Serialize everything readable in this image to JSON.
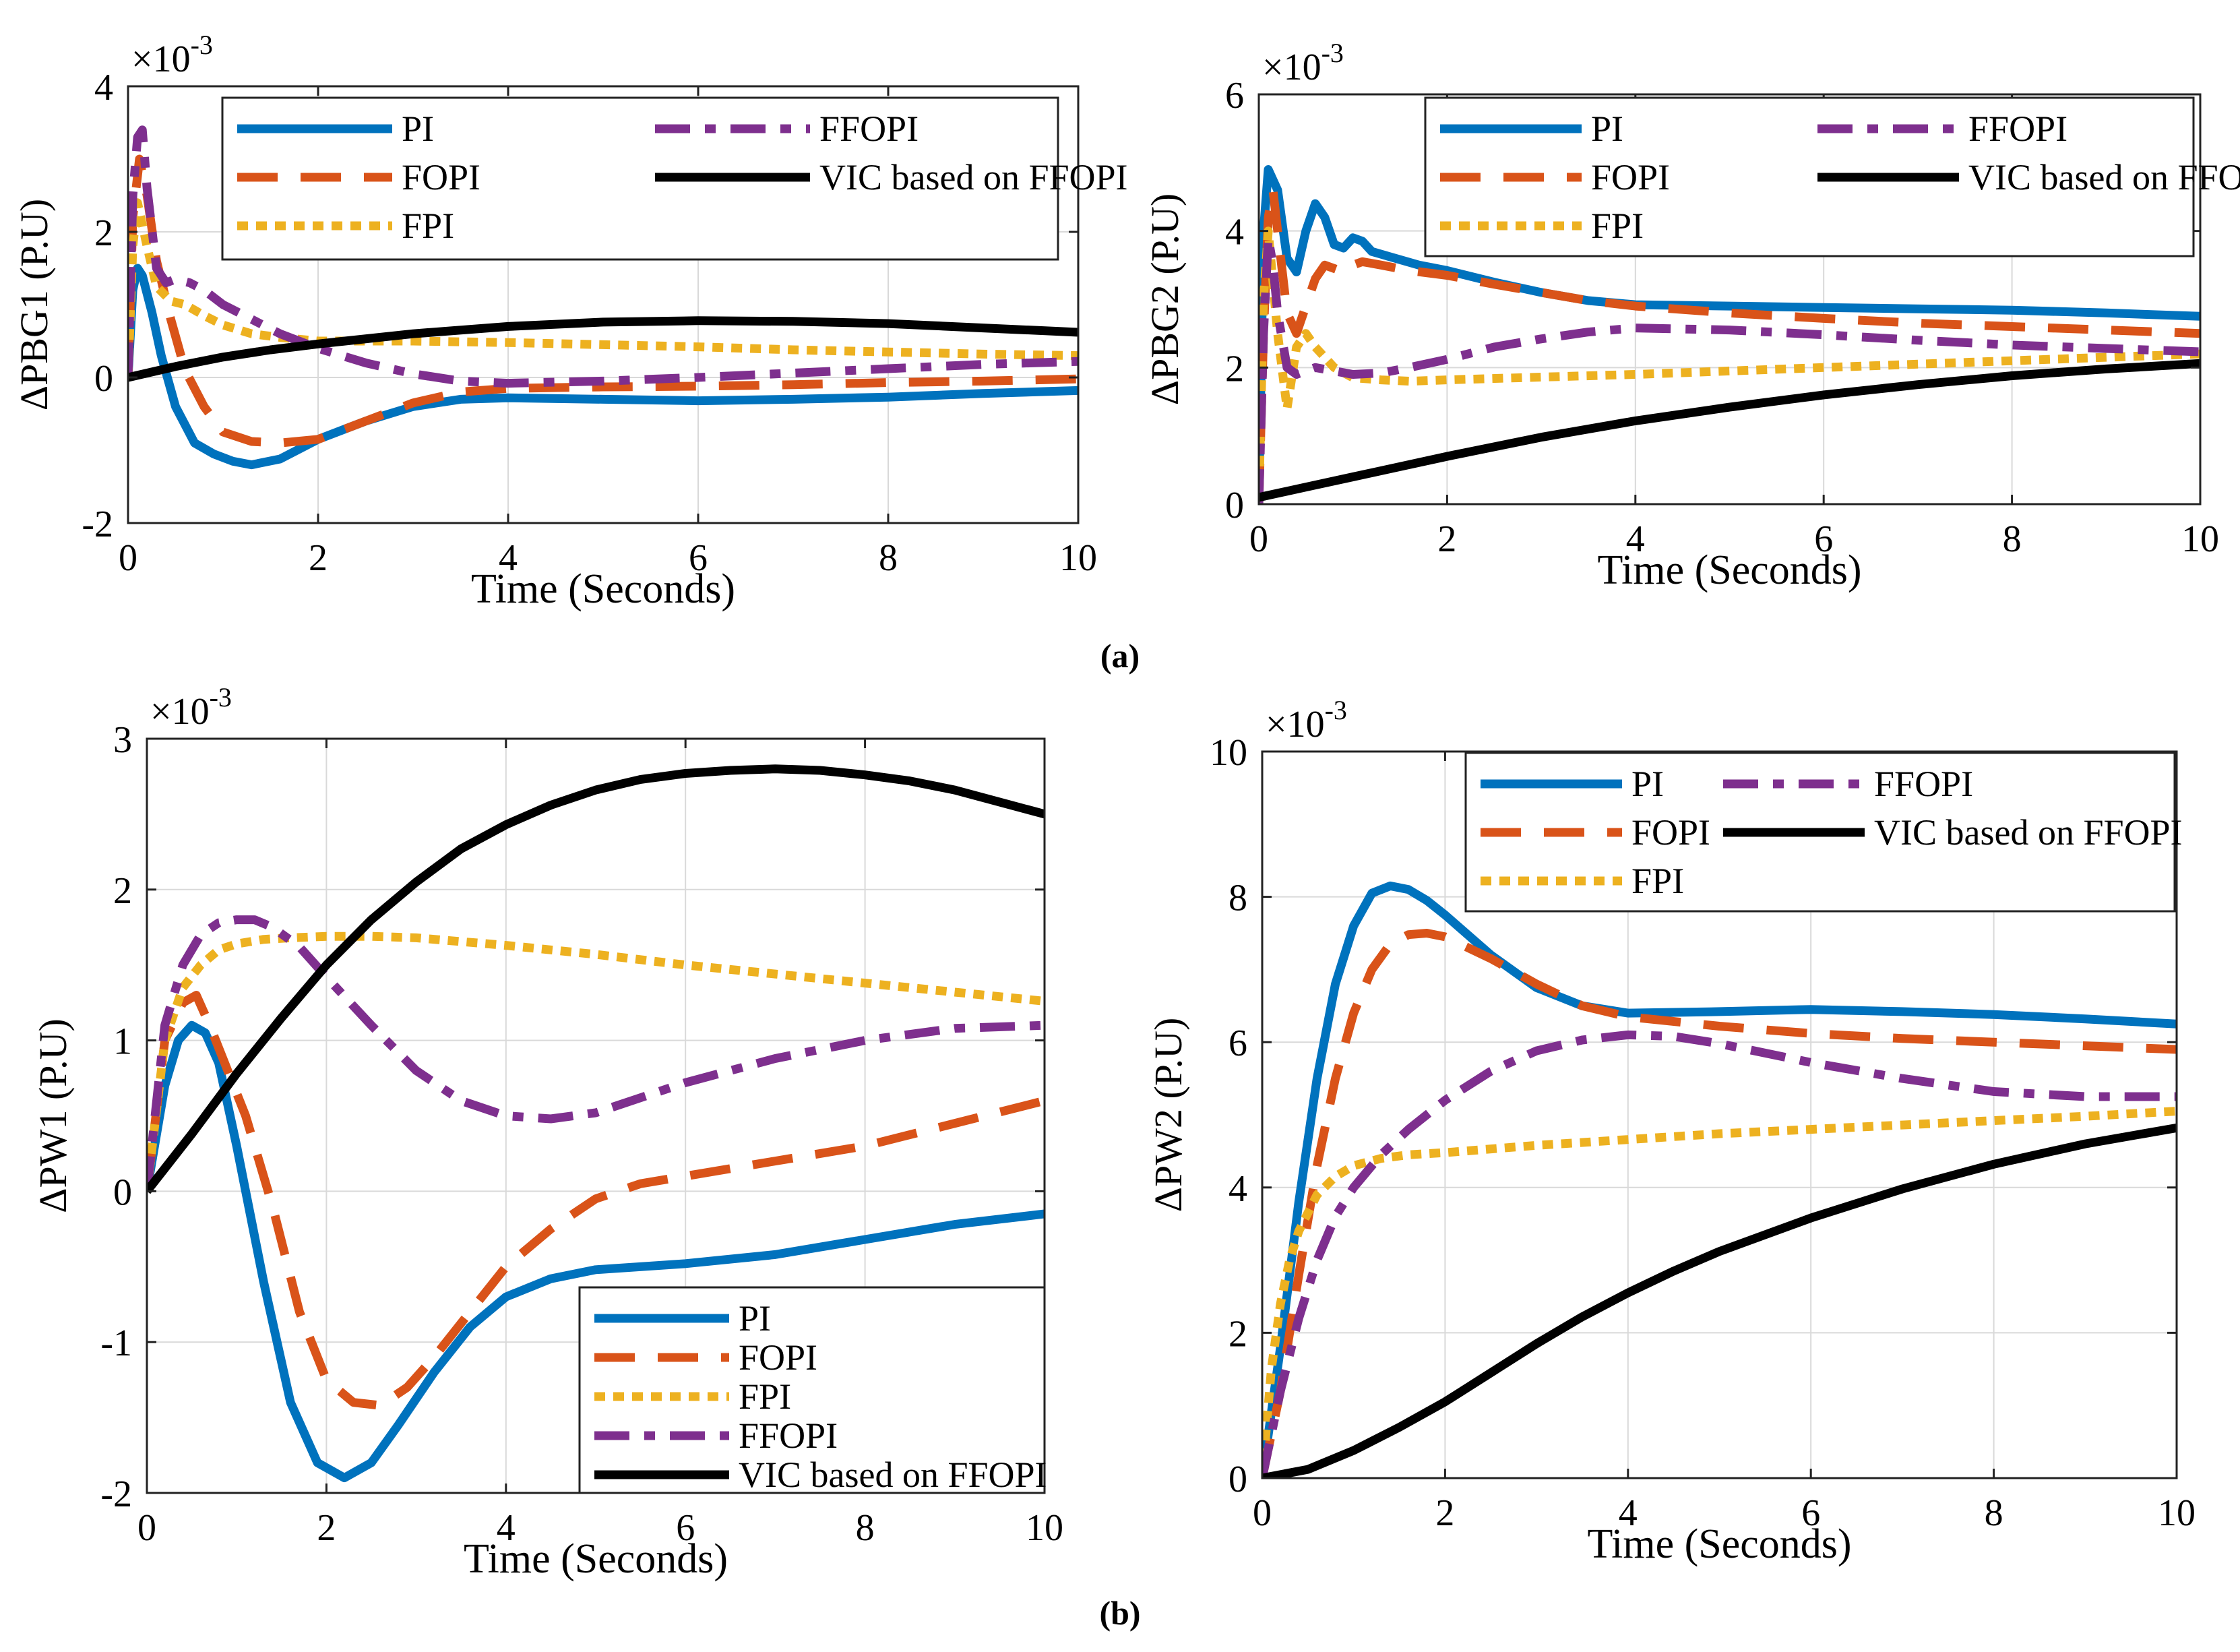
{
  "colors": {
    "PI": "#0072BD",
    "FOPI": "#D95319",
    "FPI": "#EDB120",
    "FFOPI": "#7E2F8E",
    "VIC based on FFOPI": "#000000"
  },
  "captions": {
    "a": "(a)",
    "b": "(b)"
  },
  "chart_data": [
    {
      "id": "pbg1",
      "type": "line",
      "title": "",
      "xlabel": "Time (Seconds)",
      "ylabel": "ΔPBG1 (P.U)",
      "multiplier": {
        "base": "×10",
        "exp": "-3"
      },
      "xlim": [
        0,
        10
      ],
      "ylim": [
        -2,
        4
      ],
      "xticks": [
        0,
        2,
        4,
        6,
        8,
        10
      ],
      "yticks": [
        -2,
        0,
        2,
        4
      ],
      "grid": true,
      "legend_position": "top-right",
      "legend_layout": "two-column",
      "series": [
        {
          "name": "PI",
          "x": [
            0,
            0.05,
            0.1,
            0.15,
            0.25,
            0.35,
            0.5,
            0.7,
            0.9,
            1.1,
            1.3,
            1.6,
            2.0,
            2.5,
            3.0,
            3.5,
            4.0,
            5.0,
            6.0,
            7.0,
            8.0,
            9.0,
            10.0
          ],
          "y": [
            0,
            1.2,
            1.5,
            1.4,
            0.9,
            0.3,
            -0.4,
            -0.9,
            -1.05,
            -1.15,
            -1.2,
            -1.12,
            -0.85,
            -0.6,
            -0.4,
            -0.3,
            -0.28,
            -0.3,
            -0.32,
            -0.3,
            -0.27,
            -0.22,
            -0.18
          ]
        },
        {
          "name": "FOPI",
          "x": [
            0,
            0.05,
            0.12,
            0.2,
            0.3,
            0.45,
            0.6,
            0.8,
            1.0,
            1.3,
            1.6,
            2.0,
            2.5,
            3.0,
            3.5,
            4.0,
            5.0,
            6.0,
            7.0,
            8.0,
            9.0,
            10.0
          ],
          "y": [
            0,
            2.2,
            3.0,
            2.5,
            1.6,
            0.8,
            0.1,
            -0.4,
            -0.75,
            -0.88,
            -0.9,
            -0.85,
            -0.6,
            -0.35,
            -0.2,
            -0.15,
            -0.13,
            -0.12,
            -0.1,
            -0.07,
            -0.05,
            -0.02
          ]
        },
        {
          "name": "FPI",
          "x": [
            0,
            0.05,
            0.1,
            0.2,
            0.3,
            0.45,
            0.6,
            0.8,
            1.0,
            1.3,
            1.6,
            2.0,
            2.5,
            3.0,
            4.0,
            5.0,
            6.0,
            7.0,
            8.0,
            9.0,
            10.0
          ],
          "y": [
            0,
            1.8,
            2.4,
            1.8,
            1.25,
            1.05,
            1.0,
            0.85,
            0.72,
            0.6,
            0.55,
            0.5,
            0.5,
            0.5,
            0.48,
            0.45,
            0.42,
            0.38,
            0.35,
            0.32,
            0.3
          ]
        },
        {
          "name": "FFOPI",
          "x": [
            0,
            0.05,
            0.1,
            0.15,
            0.2,
            0.3,
            0.4,
            0.5,
            0.65,
            0.8,
            1.0,
            1.3,
            1.6,
            2.0,
            2.5,
            3.0,
            3.5,
            4.0,
            5.0,
            6.0,
            7.0,
            8.0,
            9.0,
            10.0
          ],
          "y": [
            0,
            2.5,
            3.3,
            3.4,
            2.6,
            1.5,
            1.3,
            1.35,
            1.3,
            1.2,
            1.0,
            0.8,
            0.6,
            0.4,
            0.2,
            0.05,
            -0.05,
            -0.08,
            -0.05,
            0.0,
            0.06,
            0.12,
            0.18,
            0.22
          ]
        },
        {
          "name": "VIC based on FFOPI",
          "x": [
            0,
            0.5,
            1.0,
            1.5,
            2.0,
            3.0,
            4.0,
            5.0,
            6.0,
            7.0,
            8.0,
            9.0,
            10.0
          ],
          "y": [
            0,
            0.15,
            0.28,
            0.38,
            0.46,
            0.6,
            0.7,
            0.76,
            0.78,
            0.77,
            0.74,
            0.68,
            0.62
          ]
        }
      ]
    },
    {
      "id": "pbg2",
      "type": "line",
      "title": "",
      "xlabel": "Time (Seconds)",
      "ylabel": "ΔPBG2 (P.U)",
      "multiplier": {
        "base": "×10",
        "exp": "-3"
      },
      "xlim": [
        0,
        10
      ],
      "ylim": [
        0,
        6
      ],
      "xticks": [
        0,
        2,
        4,
        6,
        8,
        10
      ],
      "yticks": [
        0,
        2,
        4,
        6
      ],
      "grid": true,
      "legend_position": "top-right",
      "legend_layout": "two-column",
      "series": [
        {
          "name": "PI",
          "x": [
            0,
            0.05,
            0.1,
            0.2,
            0.3,
            0.4,
            0.5,
            0.6,
            0.7,
            0.8,
            0.9,
            1.0,
            1.1,
            1.2,
            1.4,
            1.7,
            2.0,
            2.5,
            3.0,
            3.5,
            4.0,
            5.0,
            6.0,
            7.0,
            8.0,
            9.0,
            10.0
          ],
          "y": [
            0,
            4.0,
            4.9,
            4.6,
            3.6,
            3.4,
            4.0,
            4.4,
            4.2,
            3.8,
            3.75,
            3.9,
            3.85,
            3.7,
            3.62,
            3.5,
            3.42,
            3.25,
            3.1,
            2.98,
            2.92,
            2.9,
            2.88,
            2.86,
            2.84,
            2.8,
            2.75
          ]
        },
        {
          "name": "FOPI",
          "x": [
            0,
            0.05,
            0.1,
            0.15,
            0.2,
            0.3,
            0.4,
            0.5,
            0.6,
            0.7,
            0.8,
            0.9,
            1.0,
            1.1,
            1.3,
            1.6,
            2.0,
            2.5,
            3.0,
            3.5,
            4.0,
            5.0,
            6.0,
            7.0,
            8.0,
            9.0,
            10.0
          ],
          "y": [
            0,
            2.5,
            4.2,
            4.6,
            4.0,
            2.8,
            2.5,
            2.9,
            3.3,
            3.5,
            3.45,
            3.4,
            3.5,
            3.55,
            3.5,
            3.42,
            3.35,
            3.22,
            3.1,
            2.98,
            2.9,
            2.8,
            2.72,
            2.65,
            2.6,
            2.55,
            2.5
          ]
        },
        {
          "name": "FPI",
          "x": [
            0,
            0.05,
            0.1,
            0.2,
            0.3,
            0.4,
            0.5,
            0.6,
            0.8,
            1.0,
            1.3,
            1.6,
            2.0,
            3.0,
            4.0,
            5.0,
            6.0,
            7.0,
            8.0,
            9.0,
            10.0
          ],
          "y": [
            0,
            3.0,
            4.0,
            2.5,
            1.4,
            2.3,
            2.5,
            2.3,
            2.0,
            1.85,
            1.82,
            1.8,
            1.82,
            1.86,
            1.9,
            1.95,
            2.0,
            2.05,
            2.1,
            2.15,
            2.2
          ]
        },
        {
          "name": "FFOPI",
          "x": [
            0,
            0.05,
            0.1,
            0.15,
            0.2,
            0.3,
            0.4,
            0.5,
            0.6,
            0.8,
            1.0,
            1.3,
            1.6,
            2.0,
            2.5,
            3.0,
            3.5,
            4.0,
            5.0,
            6.0,
            7.0,
            8.0,
            9.0,
            10.0
          ],
          "y": [
            0,
            2.5,
            3.9,
            3.5,
            2.8,
            2.0,
            1.9,
            1.95,
            2.0,
            1.95,
            1.9,
            1.92,
            2.0,
            2.12,
            2.3,
            2.42,
            2.52,
            2.58,
            2.55,
            2.48,
            2.4,
            2.33,
            2.28,
            2.23
          ]
        },
        {
          "name": "VIC based on FFOPI",
          "x": [
            0,
            0.5,
            1.0,
            1.5,
            2.0,
            3.0,
            4.0,
            5.0,
            6.0,
            7.0,
            8.0,
            9.0,
            10.0
          ],
          "y": [
            0.1,
            0.25,
            0.4,
            0.55,
            0.7,
            0.98,
            1.22,
            1.42,
            1.6,
            1.75,
            1.88,
            1.98,
            2.06
          ]
        }
      ]
    },
    {
      "id": "pw1",
      "type": "line",
      "title": "",
      "xlabel": "Time (Seconds)",
      "ylabel": "ΔPW1 (P.U)",
      "multiplier": {
        "base": "×10",
        "exp": "-3"
      },
      "xlim": [
        0,
        10
      ],
      "ylim": [
        -2,
        3
      ],
      "xticks": [
        0,
        2,
        4,
        6,
        8,
        10
      ],
      "yticks": [
        -2,
        -1,
        0,
        1,
        2,
        3
      ],
      "grid": true,
      "legend_position": "bottom-right",
      "legend_layout": "one-column",
      "series": [
        {
          "name": "PI",
          "x": [
            0,
            0.2,
            0.35,
            0.5,
            0.65,
            0.8,
            1.0,
            1.3,
            1.6,
            1.9,
            2.2,
            2.5,
            2.8,
            3.2,
            3.6,
            4.0,
            4.5,
            5.0,
            6.0,
            7.0,
            8.0,
            9.0,
            10.0
          ],
          "y": [
            0,
            0.7,
            1.0,
            1.1,
            1.05,
            0.85,
            0.3,
            -0.6,
            -1.4,
            -1.8,
            -1.9,
            -1.8,
            -1.55,
            -1.2,
            -0.9,
            -0.7,
            -0.58,
            -0.52,
            -0.48,
            -0.42,
            -0.32,
            -0.22,
            -0.15
          ]
        },
        {
          "name": "FOPI",
          "x": [
            0,
            0.2,
            0.4,
            0.55,
            0.7,
            0.9,
            1.1,
            1.4,
            1.7,
            2.0,
            2.3,
            2.6,
            2.9,
            3.2,
            3.6,
            4.0,
            4.5,
            5.0,
            5.5,
            6.0,
            7.0,
            8.0,
            9.0,
            10.0
          ],
          "y": [
            0,
            1.0,
            1.25,
            1.3,
            1.1,
            0.8,
            0.5,
            -0.1,
            -0.8,
            -1.25,
            -1.4,
            -1.42,
            -1.3,
            -1.1,
            -0.8,
            -0.5,
            -0.25,
            -0.05,
            0.05,
            0.1,
            0.2,
            0.3,
            0.45,
            0.6
          ]
        },
        {
          "name": "FPI",
          "x": [
            0,
            0.2,
            0.4,
            0.6,
            0.8,
            1.0,
            1.3,
            1.6,
            2.0,
            2.5,
            3.0,
            4.0,
            5.0,
            6.0,
            7.0,
            8.0,
            9.0,
            10.0
          ],
          "y": [
            0,
            1.0,
            1.35,
            1.5,
            1.6,
            1.64,
            1.67,
            1.68,
            1.69,
            1.69,
            1.68,
            1.63,
            1.57,
            1.5,
            1.44,
            1.38,
            1.32,
            1.26
          ]
        },
        {
          "name": "FFOPI",
          "x": [
            0,
            0.2,
            0.4,
            0.6,
            0.8,
            1.0,
            1.2,
            1.4,
            1.7,
            2.0,
            2.5,
            3.0,
            3.5,
            4.0,
            4.5,
            5.0,
            5.5,
            6.0,
            7.0,
            8.0,
            9.0,
            10.0
          ],
          "y": [
            0,
            1.1,
            1.5,
            1.7,
            1.78,
            1.8,
            1.8,
            1.75,
            1.62,
            1.42,
            1.1,
            0.8,
            0.6,
            0.5,
            0.48,
            0.52,
            0.62,
            0.72,
            0.88,
            1.0,
            1.08,
            1.1
          ]
        },
        {
          "name": "VIC based on FFOPI",
          "x": [
            0,
            0.5,
            1.0,
            1.5,
            2.0,
            2.5,
            3.0,
            3.5,
            4.0,
            4.5,
            5.0,
            5.5,
            6.0,
            6.5,
            7.0,
            7.5,
            8.0,
            8.5,
            9.0,
            9.5,
            10.0
          ],
          "y": [
            0,
            0.38,
            0.78,
            1.15,
            1.5,
            1.8,
            2.05,
            2.27,
            2.43,
            2.56,
            2.66,
            2.73,
            2.77,
            2.79,
            2.8,
            2.79,
            2.76,
            2.72,
            2.66,
            2.58,
            2.5
          ]
        }
      ]
    },
    {
      "id": "pw2",
      "type": "line",
      "title": "",
      "xlabel": "Time (Seconds)",
      "ylabel": "ΔPW2 (P.U)",
      "multiplier": {
        "base": "×10",
        "exp": "-3"
      },
      "xlim": [
        0,
        10
      ],
      "ylim": [
        0,
        10
      ],
      "xticks": [
        0,
        2,
        4,
        6,
        8,
        10
      ],
      "yticks": [
        0,
        2,
        4,
        6,
        8,
        10
      ],
      "grid": true,
      "legend_position": "top-right",
      "legend_layout": "two-column",
      "series": [
        {
          "name": "PI",
          "x": [
            0,
            0.2,
            0.4,
            0.6,
            0.8,
            1.0,
            1.2,
            1.4,
            1.6,
            1.8,
            2.0,
            2.5,
            3.0,
            3.5,
            4.0,
            5.0,
            6.0,
            7.0,
            8.0,
            9.0,
            10.0
          ],
          "y": [
            0,
            1.8,
            3.8,
            5.5,
            6.8,
            7.6,
            8.05,
            8.15,
            8.1,
            7.95,
            7.75,
            7.2,
            6.75,
            6.5,
            6.4,
            6.42,
            6.45,
            6.42,
            6.38,
            6.32,
            6.25
          ]
        },
        {
          "name": "FOPI",
          "x": [
            0,
            0.2,
            0.4,
            0.6,
            0.8,
            1.0,
            1.2,
            1.4,
            1.6,
            1.8,
            2.0,
            2.5,
            3.0,
            3.5,
            4.0,
            5.0,
            6.0,
            7.0,
            8.0,
            9.0,
            10.0
          ],
          "y": [
            0,
            1.2,
            2.8,
            4.3,
            5.5,
            6.4,
            7.0,
            7.35,
            7.48,
            7.5,
            7.45,
            7.15,
            6.8,
            6.5,
            6.35,
            6.22,
            6.12,
            6.05,
            6.0,
            5.95,
            5.9
          ]
        },
        {
          "name": "FPI",
          "x": [
            0,
            0.1,
            0.2,
            0.3,
            0.4,
            0.6,
            0.8,
            1.0,
            1.3,
            1.6,
            2.0,
            3.0,
            4.0,
            5.0,
            6.0,
            7.0,
            8.0,
            9.0,
            10.0
          ],
          "y": [
            0,
            1.5,
            2.4,
            3.0,
            3.4,
            3.9,
            4.15,
            4.3,
            4.4,
            4.45,
            4.48,
            4.58,
            4.66,
            4.74,
            4.8,
            4.86,
            4.92,
            4.98,
            5.05
          ]
        },
        {
          "name": "FFOPI",
          "x": [
            0,
            0.2,
            0.4,
            0.6,
            0.8,
            1.0,
            1.3,
            1.6,
            2.0,
            2.5,
            3.0,
            3.5,
            4.0,
            4.5,
            5.0,
            6.0,
            7.0,
            8.0,
            9.0,
            10.0
          ],
          "y": [
            0,
            1.2,
            2.2,
            3.0,
            3.6,
            4.0,
            4.45,
            4.8,
            5.2,
            5.6,
            5.88,
            6.03,
            6.1,
            6.08,
            5.98,
            5.72,
            5.5,
            5.32,
            5.25,
            5.25
          ]
        },
        {
          "name": "VIC based on FFOPI",
          "x": [
            0,
            0.5,
            1.0,
            1.5,
            2.0,
            2.5,
            3.0,
            3.5,
            4.0,
            4.5,
            5.0,
            6.0,
            7.0,
            8.0,
            9.0,
            10.0
          ],
          "y": [
            0,
            0.12,
            0.38,
            0.7,
            1.05,
            1.45,
            1.85,
            2.22,
            2.55,
            2.85,
            3.12,
            3.58,
            3.98,
            4.32,
            4.6,
            4.82
          ]
        }
      ]
    }
  ]
}
